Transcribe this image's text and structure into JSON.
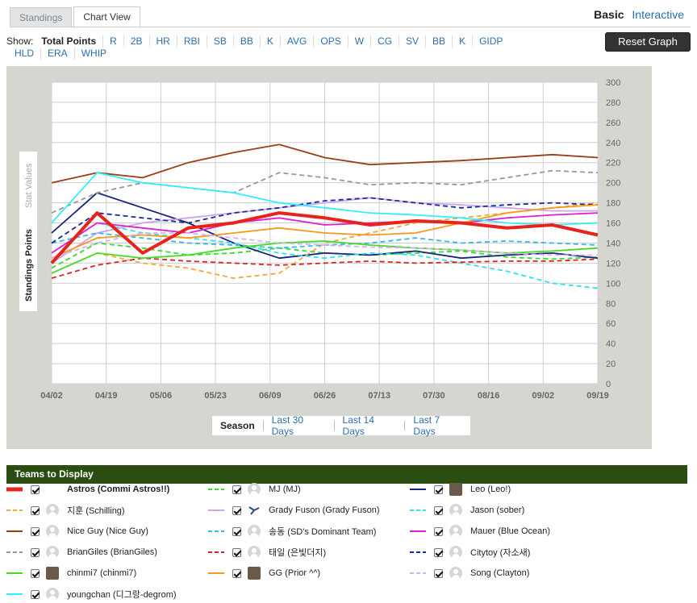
{
  "tabs": [
    "Standings",
    "Chart View"
  ],
  "mode": {
    "basic": "Basic",
    "interactive": "Interactive"
  },
  "show_label": "Show:",
  "stats": [
    "Total Points",
    "R",
    "2B",
    "HR",
    "RBI",
    "SB",
    "BB",
    "K",
    "AVG",
    "OPS",
    "W",
    "CG",
    "SV",
    "BB",
    "K",
    "GIDP",
    "HLD",
    "ERA",
    "WHIP"
  ],
  "reset_label": "Reset Graph",
  "ranges": [
    "Season",
    "Last 30 Days",
    "Last 14 Days",
    "Last 7 Days"
  ],
  "teams_header": "Teams to Display",
  "teams": [
    {
      "name": "Astros (Commi Astros!!)",
      "color": "#e8231c",
      "dash": "solid",
      "avatar": "none",
      "bold": true
    },
    {
      "name": "MJ (MJ)",
      "color": "#33dd33",
      "dash": "dashed",
      "avatar": "default",
      "bold": false
    },
    {
      "name": "Leo (Leo!)",
      "color": "#1a237e",
      "dash": "solid",
      "avatar": "photo",
      "bold": false
    },
    {
      "name": "지훈 (Schilling)",
      "color": "#f5a742",
      "dash": "dashed",
      "avatar": "default",
      "bold": false
    },
    {
      "name": "Grady Fuson (Grady Fuson)",
      "color": "#c9a6ee",
      "dash": "solid",
      "avatar": "logo",
      "bold": false
    },
    {
      "name": "Jason (sober)",
      "color": "#33e0f0",
      "dash": "dashed",
      "avatar": "default",
      "bold": false
    },
    {
      "name": "Nice Guy (Nice Guy)",
      "color": "#9b3d16",
      "dash": "solid",
      "avatar": "default",
      "bold": false
    },
    {
      "name": "송동 (SD's Dominant Team)",
      "color": "#33b6e8",
      "dash": "dashed",
      "avatar": "default",
      "bold": false
    },
    {
      "name": "Mauer (Blue Ocean)",
      "color": "#e020d0",
      "dash": "solid",
      "avatar": "default",
      "bold": false
    },
    {
      "name": "BrianGiles (BrianGiles)",
      "color": "#999999",
      "dash": "dashed",
      "avatar": "default",
      "bold": false
    },
    {
      "name": "태일 (은빛더지)",
      "color": "#dd2222",
      "dash": "dashed",
      "avatar": "default",
      "bold": false
    },
    {
      "name": "Citytoy (자소새)",
      "color": "#1a2a9e",
      "dash": "dashed",
      "avatar": "default",
      "bold": false
    },
    {
      "name": "chinmi7 (chinmi7)",
      "color": "#44dd22",
      "dash": "solid",
      "avatar": "photo",
      "bold": false
    },
    {
      "name": "GG (Prior ^^)",
      "color": "#f59a1a",
      "dash": "solid",
      "avatar": "photo",
      "bold": false
    },
    {
      "name": "Song (Clayton)",
      "color": "#d8b0f0",
      "dash": "dashed",
      "avatar": "default",
      "bold": false
    },
    {
      "name": "youngchan (디그랑-degrom)",
      "color": "#33eeff",
      "dash": "solid",
      "avatar": "default",
      "bold": false
    }
  ],
  "chart_data": {
    "type": "line",
    "ylabel": "Standings Points",
    "ylabel_alt": "Stat Values",
    "ylim": [
      0,
      300
    ],
    "yticks": [
      0,
      20,
      40,
      60,
      80,
      100,
      120,
      140,
      160,
      180,
      200,
      220,
      240,
      260,
      280,
      300
    ],
    "x_ticks": [
      "04/02",
      "04/19",
      "05/06",
      "05/23",
      "06/09",
      "06/26",
      "07/13",
      "07/30",
      "08/16",
      "09/02",
      "09/19"
    ],
    "grid": true,
    "series": [
      {
        "name": "Astros (Commi Astros!!)",
        "values": [
          120,
          170,
          130,
          155,
          160,
          170,
          165,
          158,
          162,
          160,
          155,
          158,
          148
        ]
      },
      {
        "name": "MJ (MJ)",
        "values": [
          115,
          140,
          135,
          128,
          130,
          135,
          130,
          128,
          130,
          132,
          126,
          124,
          126
        ]
      },
      {
        "name": "Leo (Leo!)",
        "values": [
          150,
          190,
          175,
          160,
          140,
          125,
          130,
          128,
          132,
          125,
          128,
          130,
          125
        ]
      },
      {
        "name": "지훈 (Schilling)",
        "values": [
          110,
          130,
          120,
          115,
          105,
          110,
          140,
          150,
          160,
          165,
          170,
          175,
          180
        ]
      },
      {
        "name": "Grady Fuson (Grady Fuson)",
        "values": [
          120,
          150,
          160,
          165,
          170,
          175,
          180,
          185,
          180,
          178,
          175,
          172,
          172
        ]
      },
      {
        "name": "Jason (sober)",
        "values": [
          130,
          160,
          150,
          145,
          140,
          130,
          125,
          130,
          128,
          120,
          112,
          100,
          95
        ]
      },
      {
        "name": "Nice Guy (Nice Guy)",
        "values": [
          200,
          210,
          205,
          220,
          230,
          238,
          225,
          218,
          220,
          222,
          225,
          228,
          225
        ]
      },
      {
        "name": "송동 (SD's Dominant Team)",
        "values": [
          140,
          150,
          145,
          140,
          138,
          135,
          138,
          140,
          145,
          140,
          142,
          140,
          138
        ]
      },
      {
        "name": "Mauer (Blue Ocean)",
        "values": [
          130,
          160,
          155,
          150,
          160,
          165,
          158,
          160,
          162,
          160,
          165,
          168,
          170
        ]
      },
      {
        "name": "BrianGiles (BrianGiles)",
        "values": [
          170,
          190,
          200,
          195,
          190,
          210,
          205,
          198,
          200,
          198,
          205,
          212,
          210
        ]
      },
      {
        "name": "태일 (은빛더지)",
        "values": [
          105,
          118,
          125,
          122,
          120,
          118,
          120,
          122,
          120,
          121,
          122,
          122,
          124
        ]
      },
      {
        "name": "Citytoy (자소새)",
        "values": [
          140,
          170,
          165,
          160,
          170,
          175,
          182,
          185,
          180,
          175,
          178,
          180,
          178
        ]
      },
      {
        "name": "chinmi7 (chinmi7)",
        "values": [
          110,
          130,
          125,
          128,
          135,
          140,
          142,
          138,
          135,
          133,
          130,
          132,
          135
        ]
      },
      {
        "name": "GG (Prior ^^)",
        "values": [
          125,
          145,
          148,
          145,
          150,
          155,
          150,
          148,
          150,
          160,
          170,
          175,
          178
        ]
      },
      {
        "name": "Song (Clayton)",
        "values": [
          125,
          140,
          150,
          150,
          145,
          140,
          138,
          136,
          135,
          133,
          130,
          128,
          128
        ]
      },
      {
        "name": "youngchan (디그랑-degrom)",
        "values": [
          160,
          210,
          200,
          195,
          190,
          180,
          175,
          170,
          168,
          165,
          160,
          158,
          160
        ]
      }
    ]
  }
}
